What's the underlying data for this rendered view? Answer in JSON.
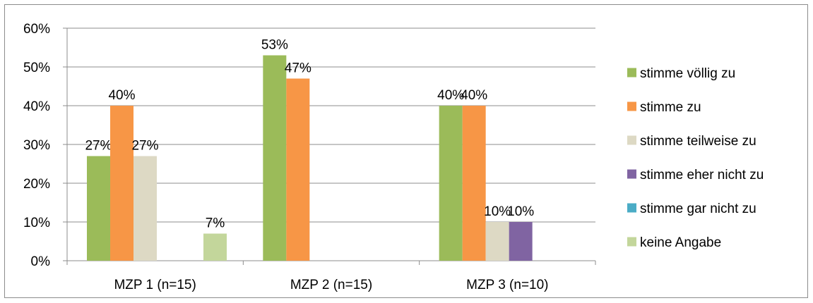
{
  "chart_data": {
    "type": "bar",
    "categories": [
      "MZP 1 (n=15)",
      "MZP 2 (n=15)",
      "MZP 3 (n=10)"
    ],
    "ylim": [
      0,
      60
    ],
    "yticks": [
      "0%",
      "10%",
      "20%",
      "30%",
      "40%",
      "50%",
      "60%"
    ],
    "grid": true,
    "legend_position": "right",
    "series": [
      {
        "name": "stimme völlig zu",
        "color": "#9bbb59",
        "values": [
          27,
          53,
          40
        ],
        "labels": [
          "27%",
          "53%",
          "40%"
        ]
      },
      {
        "name": "stimme zu",
        "color": "#f79646",
        "values": [
          40,
          47,
          40
        ],
        "labels": [
          "40%",
          "47%",
          "40%"
        ]
      },
      {
        "name": "stimme teilweise zu",
        "color": "#ddd9c4",
        "values": [
          27,
          0,
          10
        ],
        "labels": [
          "27%",
          "",
          "10%"
        ]
      },
      {
        "name": "stimme eher nicht zu",
        "color": "#8064a2",
        "values": [
          0,
          0,
          10
        ],
        "labels": [
          "",
          "",
          "10%"
        ]
      },
      {
        "name": "stimme gar nicht zu",
        "color": "#4bacc6",
        "values": [
          0,
          0,
          0
        ],
        "labels": [
          "",
          "",
          ""
        ]
      },
      {
        "name": "keine Angabe",
        "color": "#c3d69b",
        "values": [
          7,
          0,
          0
        ],
        "labels": [
          "7%",
          "",
          ""
        ]
      }
    ]
  }
}
